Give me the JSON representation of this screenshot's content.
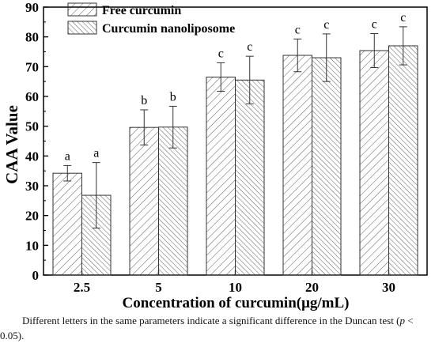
{
  "chart_data": {
    "type": "bar",
    "categories": [
      "2.5",
      "5",
      "10",
      "20",
      "30"
    ],
    "series": [
      {
        "name": "Free curcumin",
        "values": [
          34.2,
          49.6,
          66.5,
          73.8,
          75.4
        ],
        "errors": [
          2.6,
          5.9,
          4.8,
          5.5,
          5.7
        ],
        "letters": [
          "a",
          "b",
          "c",
          "c",
          "c"
        ],
        "hatch": "forward"
      },
      {
        "name": "Curcumin nanoliposome",
        "values": [
          26.8,
          49.7,
          65.5,
          73.0,
          77.0
        ],
        "errors": [
          11.0,
          7.0,
          8.0,
          8.0,
          6.4
        ],
        "letters": [
          "a",
          "b",
          "c",
          "c",
          "c"
        ],
        "hatch": "backward"
      }
    ],
    "xlabel": "Concentration of curcumin(μg/mL)",
    "ylabel": "CAA Value",
    "ylim": [
      0,
      90
    ],
    "yticks": [
      0,
      10,
      20,
      30,
      40,
      50,
      60,
      70,
      80,
      90
    ],
    "grid": false,
    "legend_position": "top-left"
  },
  "caption": {
    "part1": "Different letters in the same parameters indicate a significant difference in the Duncan test (",
    "p": "p",
    "part2": " < 0.05)."
  }
}
